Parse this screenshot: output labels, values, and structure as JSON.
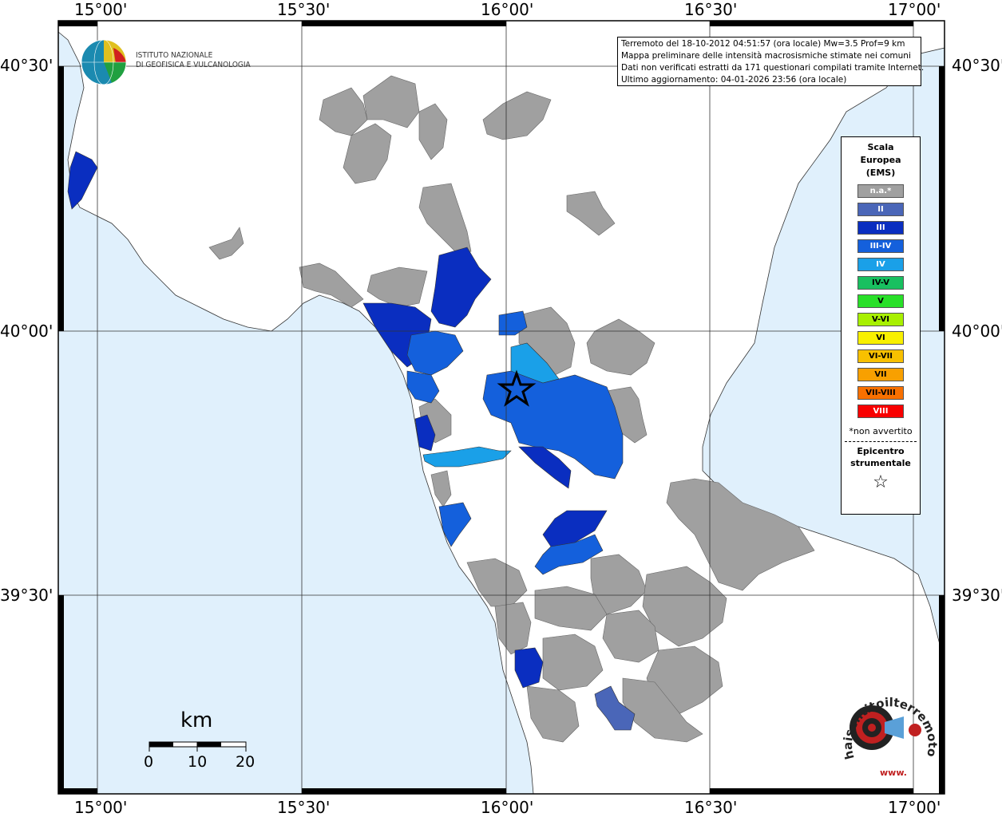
{
  "map": {
    "longitude_ticks": [
      "15°00'",
      "15°30'",
      "16°00'",
      "16°30'",
      "17°00'"
    ],
    "latitude_ticks": [
      "40°30'",
      "40°00'",
      "39°30'"
    ]
  },
  "logo": {
    "line1": "ISTITUTO NAZIONALE",
    "line2": "DI GEOFISICA E VULCANOLOGIA"
  },
  "info_box": {
    "line1": "Terremoto del 18-10-2012 04:51:57 (ora locale) Mw=3.5 Prof=9 km",
    "line2": "Mappa preliminare delle intensità macrosismiche stimate nei comuni",
    "line3": "Dati non verificati estratti da 171 questionari compilati tramite Internet.",
    "line4": "Ultimo aggiornamento: 04-01-2026 23:56 (ora locale)"
  },
  "legend": {
    "title1": "Scala",
    "title2": "Europea",
    "title3": "(EMS)",
    "items": [
      {
        "label": "n.a.*",
        "color": "#a0a0a0",
        "text_color": "#ffffff"
      },
      {
        "label": "II",
        "color": "#4a66b8",
        "text_color": "#ffffff"
      },
      {
        "label": "III",
        "color": "#0a2ec0",
        "text_color": "#ffffff"
      },
      {
        "label": "III-IV",
        "color": "#1460dc",
        "text_color": "#ffffff"
      },
      {
        "label": "IV",
        "color": "#1aa0e8",
        "text_color": "#ffffff"
      },
      {
        "label": "IV-V",
        "color": "#18c060",
        "text_color": "#000000"
      },
      {
        "label": "V",
        "color": "#28e028",
        "text_color": "#000000"
      },
      {
        "label": "V-VI",
        "color": "#a8f000",
        "text_color": "#000000"
      },
      {
        "label": "VI",
        "color": "#f8f000",
        "text_color": "#000000"
      },
      {
        "label": "VI-VII",
        "color": "#f8c000",
        "text_color": "#000000"
      },
      {
        "label": "VII",
        "color": "#f8a000",
        "text_color": "#000000"
      },
      {
        "label": "VII-VIII",
        "color": "#f87000",
        "text_color": "#000000"
      },
      {
        "label": "VIII",
        "color": "#f80000",
        "text_color": "#ffffff"
      }
    ],
    "note": "*non avvertito",
    "epicenter1": "Epicentro",
    "epicenter2": "strumentale"
  },
  "scale_bar": {
    "unit": "km",
    "labels": [
      "0",
      "10",
      "20"
    ]
  },
  "watermark": {
    "text": "haisentitoilterremoto.it",
    "prefix": "www."
  },
  "colors": {
    "sea": "#e0f0fc",
    "land": "#ffffff",
    "not_felt": "#a0a0a0"
  }
}
